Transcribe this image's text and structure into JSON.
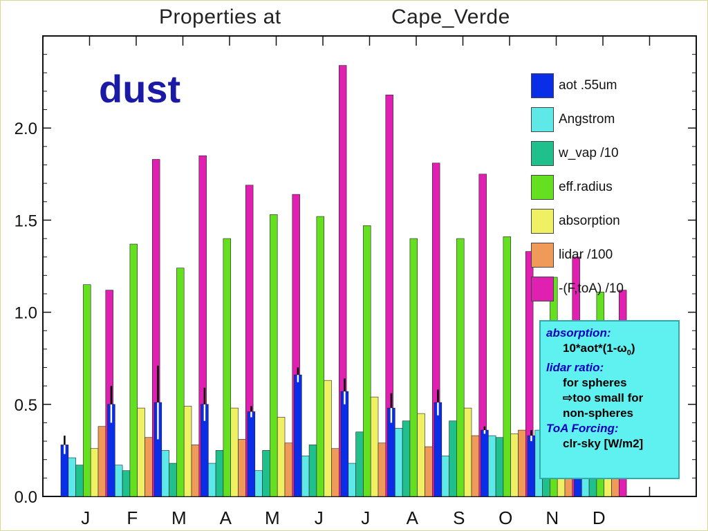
{
  "title": {
    "prefix": "Properties at",
    "site": "Cape_Verde"
  },
  "big_label": "dust",
  "legend": [
    {
      "label": "aot .55um",
      "color": "#0a2ee8"
    },
    {
      "label": "Angstrom",
      "color": "#5fe8e8"
    },
    {
      "label": "w_vap /10",
      "color": "#1fc08c"
    },
    {
      "label": "eff.radius",
      "color": "#64e020"
    },
    {
      "label": "absorption",
      "color": "#f0f064"
    },
    {
      "label": "lidar /100",
      "color": "#f09a5a"
    },
    {
      "label": "-(F,toA) /10",
      "color": "#e020b0"
    }
  ],
  "note": {
    "absorption_head": "absorption:",
    "absorption_formula": "10*aot*(1-ω0)",
    "lidar_head": "lidar ratio:",
    "lidar_line1": "for spheres",
    "lidar_line2": "⇨too small for",
    "lidar_line3": "non-spheres",
    "toa_head": "ToA Forcing:",
    "toa_line1": "clr-sky [W/m2]"
  },
  "chart_data": {
    "type": "bar",
    "categories": [
      "J",
      "F",
      "M",
      "A",
      "M",
      "J",
      "J",
      "A",
      "S",
      "O",
      "N",
      "D"
    ],
    "ylim": [
      0,
      2.5
    ],
    "yticks": [
      "0.0",
      "0.5",
      "1.0",
      "1.5",
      "2.0"
    ],
    "series": [
      {
        "name": "aot .55um",
        "color": "#0a2ee8",
        "values": [
          0.28,
          0.5,
          0.51,
          0.5,
          0.46,
          0.66,
          0.57,
          0.48,
          0.51,
          0.36,
          0.33,
          0.27
        ],
        "errors": [
          0.05,
          0.1,
          0.2,
          0.09,
          0.03,
          0.04,
          0.07,
          0.08,
          0.07,
          0.02,
          0.03,
          0.03
        ]
      },
      {
        "name": "Angstrom",
        "color": "#5fe8e8",
        "values": [
          0.21,
          0.17,
          0.25,
          0.18,
          0.14,
          0.22,
          0.18,
          0.37,
          0.22,
          0.33,
          0.36,
          0.25
        ]
      },
      {
        "name": "w_vap /10",
        "color": "#1fc08c",
        "values": [
          0.17,
          0.14,
          0.18,
          0.25,
          0.25,
          0.28,
          0.35,
          0.41,
          0.41,
          0.32,
          0.26,
          0.21
        ]
      },
      {
        "name": "eff.radius",
        "color": "#64e020",
        "values": [
          1.15,
          1.37,
          1.24,
          1.4,
          1.53,
          1.52,
          1.47,
          1.4,
          1.4,
          1.41,
          1.19,
          1.11
        ]
      },
      {
        "name": "absorption",
        "color": "#f0f064",
        "values": [
          0.26,
          0.48,
          0.49,
          0.48,
          0.43,
          0.63,
          0.54,
          0.45,
          0.48,
          0.34,
          0.3,
          0.26
        ]
      },
      {
        "name": "lidar /100",
        "color": "#f09a5a",
        "values": [
          0.38,
          0.32,
          0.28,
          0.31,
          0.29,
          0.26,
          0.29,
          0.27,
          0.33,
          0.36,
          0.33,
          0.32
        ]
      },
      {
        "name": "-(F,toA) /10",
        "color": "#e020b0",
        "values": [
          1.12,
          1.83,
          1.85,
          1.69,
          1.64,
          2.34,
          2.18,
          1.81,
          1.75,
          1.33,
          1.3,
          1.12
        ]
      }
    ]
  }
}
